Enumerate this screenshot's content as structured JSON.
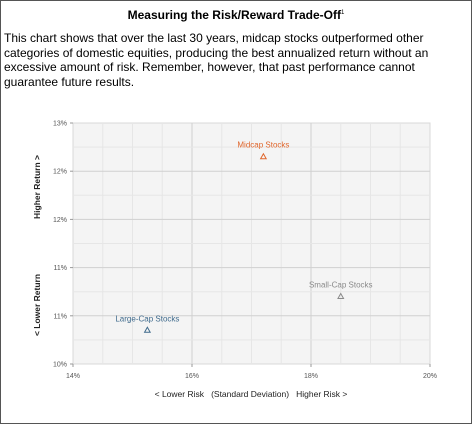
{
  "header": {
    "title": "Measuring the Risk/Reward Trade-Off",
    "footnote_mark": "1"
  },
  "description": "This chart shows that over the last 30 years, midcap stocks outperformed other categories of domestic equities, producing the best annualized return without an excessive amount of risk. Remember, however, that past performance cannot guarantee future results.",
  "chart_data": {
    "type": "scatter",
    "xlabel": "< Lower Risk   (Standard Deviation)   Higher Risk >",
    "ylabel_bottom": "< Lower Return",
    "ylabel_top": "Higher Return >",
    "x_ticks": [
      "14%",
      "16%",
      "18%",
      "20%"
    ],
    "y_ticks": [
      "10%",
      "11%",
      "11%",
      "12%",
      "12%",
      "13%"
    ],
    "xlim": [
      14,
      20
    ],
    "ylim": [
      10,
      12.5
    ],
    "grid": true,
    "points": [
      {
        "label": "Midcap Stocks",
        "x": 17.2,
        "y": 12.15,
        "color": "#e0662c"
      },
      {
        "label": "Small-Cap Stocks",
        "x": 18.5,
        "y": 10.7,
        "color": "#8a8a8a"
      },
      {
        "label": "Large-Cap Stocks",
        "x": 15.25,
        "y": 10.35,
        "color": "#3f6a8c"
      }
    ]
  }
}
